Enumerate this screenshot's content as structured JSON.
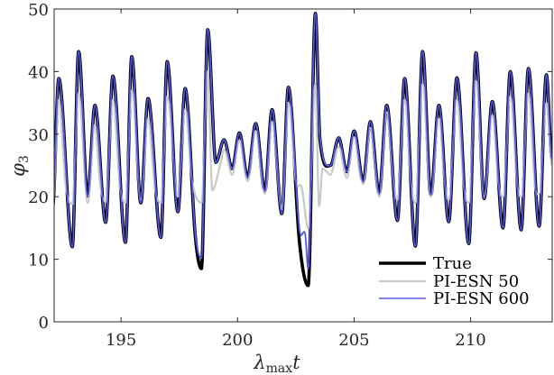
{
  "chart_data": {
    "type": "line",
    "title": "",
    "xlabel": "λ_max t",
    "xlabel_main": "λ",
    "xlabel_sub": "max",
    "xlabel_tail": "t",
    "ylabel": "φ_3",
    "ylabel_main": "φ",
    "ylabel_sub": "3",
    "xlim": [
      192.13,
      213.5
    ],
    "ylim": [
      0,
      50
    ],
    "xticks": [
      195,
      200,
      205,
      210
    ],
    "xtick_labels": [
      "195",
      "200",
      "205",
      "210"
    ],
    "yticks": [
      0,
      10,
      20,
      30,
      40,
      50
    ],
    "ytick_labels": [
      "0",
      "10",
      "20",
      "30",
      "40",
      "50"
    ],
    "grid": false,
    "legend_position": "lower right",
    "series": [
      {
        "name": "True",
        "color": "#000000",
        "width": 3.6,
        "points": [
          [
            192.06,
            18.2
          ],
          [
            192.33,
            38.9
          ],
          [
            192.91,
            12.0
          ],
          [
            193.18,
            43.2
          ],
          [
            193.57,
            20.1
          ],
          [
            193.88,
            34.6
          ],
          [
            194.34,
            15.9
          ],
          [
            194.65,
            39.3
          ],
          [
            195.19,
            12.7
          ],
          [
            195.46,
            42.4
          ],
          [
            195.85,
            19.0
          ],
          [
            196.16,
            35.7
          ],
          [
            196.71,
            13.5
          ],
          [
            196.98,
            41.6
          ],
          [
            197.44,
            17.6
          ],
          [
            197.75,
            37.3
          ],
          [
            198.18,
            14.0
          ],
          [
            198.45,
            8.5
          ],
          [
            198.72,
            46.7
          ],
          [
            199.07,
            25.5
          ],
          [
            199.42,
            29.1
          ],
          [
            199.77,
            24.5
          ],
          [
            200.08,
            30.2
          ],
          [
            200.43,
            23.1
          ],
          [
            200.78,
            31.7
          ],
          [
            201.17,
            20.9
          ],
          [
            201.48,
            33.9
          ],
          [
            201.9,
            17.3
          ],
          [
            202.18,
            37.5
          ],
          [
            202.65,
            13.0
          ],
          [
            203.03,
            5.8
          ],
          [
            203.34,
            49.3
          ],
          [
            203.53,
            29.4
          ],
          [
            203.99,
            25.0
          ],
          [
            204.34,
            29.4
          ],
          [
            204.69,
            24.0
          ],
          [
            205.0,
            30.5
          ],
          [
            205.39,
            22.4
          ],
          [
            205.7,
            32.0
          ],
          [
            206.08,
            20.5
          ],
          [
            206.4,
            34.6
          ],
          [
            206.86,
            16.2
          ],
          [
            207.17,
            38.9
          ],
          [
            207.63,
            12.1
          ],
          [
            207.94,
            43.2
          ],
          [
            208.29,
            20.3
          ],
          [
            208.64,
            34.6
          ],
          [
            209.06,
            16.0
          ],
          [
            209.41,
            39.0
          ],
          [
            209.92,
            12.5
          ],
          [
            210.23,
            43.0
          ],
          [
            210.58,
            19.7
          ],
          [
            210.93,
            35.2
          ],
          [
            211.39,
            15.0
          ],
          [
            211.7,
            40.0
          ],
          [
            212.17,
            14.7
          ],
          [
            212.48,
            40.5
          ],
          [
            212.94,
            15.3
          ],
          [
            213.25,
            39.5
          ],
          [
            213.49,
            26.0
          ]
        ]
      },
      {
        "name": "PI-ESN 50",
        "color": "#c8c8c8",
        "width": 2.2,
        "points": [
          [
            192.06,
            18.5
          ],
          [
            192.33,
            35.5
          ],
          [
            192.62,
            22.0
          ],
          [
            192.91,
            18.8
          ],
          [
            193.18,
            36.5
          ],
          [
            193.57,
            19.0
          ],
          [
            193.88,
            31.5
          ],
          [
            194.1,
            22.0
          ],
          [
            194.34,
            19.2
          ],
          [
            194.65,
            35.5
          ],
          [
            194.95,
            21.8
          ],
          [
            195.19,
            19.0
          ],
          [
            195.46,
            37.0
          ],
          [
            195.85,
            19.5
          ],
          [
            196.16,
            32.5
          ],
          [
            196.45,
            21.5
          ],
          [
            196.71,
            19.0
          ],
          [
            196.98,
            36.0
          ],
          [
            197.44,
            20.0
          ],
          [
            197.75,
            34.0
          ],
          [
            198.05,
            22.5
          ],
          [
            198.45,
            19.0
          ],
          [
            198.72,
            40.0
          ],
          [
            198.92,
            21.0
          ],
          [
            199.25,
            25.0
          ],
          [
            199.42,
            27.5
          ],
          [
            199.77,
            23.5
          ],
          [
            200.08,
            29.0
          ],
          [
            200.43,
            22.5
          ],
          [
            200.78,
            30.5
          ],
          [
            201.17,
            20.5
          ],
          [
            201.48,
            32.0
          ],
          [
            201.9,
            18.0
          ],
          [
            202.18,
            35.0
          ],
          [
            202.5,
            22.5
          ],
          [
            202.75,
            21.5
          ],
          [
            203.03,
            15.0
          ],
          [
            203.34,
            38.0
          ],
          [
            203.5,
            18.5
          ],
          [
            203.65,
            24.5
          ],
          [
            203.99,
            23.5
          ],
          [
            204.34,
            28.0
          ],
          [
            204.69,
            23.0
          ],
          [
            205.0,
            29.5
          ],
          [
            205.39,
            22.0
          ],
          [
            205.7,
            31.0
          ],
          [
            206.08,
            20.0
          ],
          [
            206.4,
            33.5
          ],
          [
            206.7,
            22.0
          ],
          [
            206.86,
            19.5
          ],
          [
            207.17,
            35.5
          ],
          [
            207.45,
            22.0
          ],
          [
            207.63,
            19.0
          ],
          [
            207.94,
            38.0
          ],
          [
            208.29,
            20.0
          ],
          [
            208.64,
            32.5
          ],
          [
            208.9,
            22.0
          ],
          [
            209.06,
            19.5
          ],
          [
            209.41,
            35.5
          ],
          [
            209.7,
            22.0
          ],
          [
            209.92,
            19.0
          ],
          [
            210.23,
            38.5
          ],
          [
            210.58,
            20.0
          ],
          [
            210.93,
            33.0
          ],
          [
            211.2,
            22.0
          ],
          [
            211.39,
            20.0
          ],
          [
            211.7,
            36.0
          ],
          [
            212.0,
            22.0
          ],
          [
            212.17,
            20.0
          ],
          [
            212.48,
            36.5
          ],
          [
            212.75,
            22.0
          ],
          [
            212.94,
            20.5
          ],
          [
            213.25,
            35.0
          ],
          [
            213.49,
            25.0
          ]
        ]
      },
      {
        "name": "PI-ESN 600",
        "color": "#5858e8",
        "width": 1.8,
        "points": [
          [
            192.06,
            18.2
          ],
          [
            192.33,
            38.9
          ],
          [
            192.91,
            12.0
          ],
          [
            193.18,
            43.2
          ],
          [
            193.57,
            20.1
          ],
          [
            193.88,
            34.6
          ],
          [
            194.34,
            15.9
          ],
          [
            194.65,
            39.3
          ],
          [
            195.19,
            12.7
          ],
          [
            195.46,
            42.4
          ],
          [
            195.85,
            19.0
          ],
          [
            196.16,
            35.7
          ],
          [
            196.71,
            13.5
          ],
          [
            196.98,
            41.6
          ],
          [
            197.44,
            17.6
          ],
          [
            197.75,
            37.3
          ],
          [
            198.18,
            14.5
          ],
          [
            198.45,
            10.2
          ],
          [
            198.72,
            46.7
          ],
          [
            199.07,
            25.5
          ],
          [
            199.42,
            29.1
          ],
          [
            199.77,
            24.5
          ],
          [
            200.08,
            30.2
          ],
          [
            200.43,
            23.1
          ],
          [
            200.78,
            31.7
          ],
          [
            201.17,
            20.9
          ],
          [
            201.48,
            33.9
          ],
          [
            201.9,
            17.3
          ],
          [
            202.18,
            37.5
          ],
          [
            202.65,
            15.0
          ],
          [
            202.9,
            14.0
          ],
          [
            203.03,
            8.5
          ],
          [
            203.34,
            49.3
          ],
          [
            203.53,
            29.8
          ],
          [
            203.99,
            25.0
          ],
          [
            204.34,
            29.4
          ],
          [
            204.69,
            24.0
          ],
          [
            205.0,
            30.5
          ],
          [
            205.39,
            22.4
          ],
          [
            205.7,
            32.0
          ],
          [
            206.08,
            20.5
          ],
          [
            206.4,
            34.6
          ],
          [
            206.86,
            16.2
          ],
          [
            207.17,
            38.9
          ],
          [
            207.63,
            12.1
          ],
          [
            207.94,
            43.2
          ],
          [
            208.29,
            20.3
          ],
          [
            208.64,
            34.6
          ],
          [
            209.06,
            16.0
          ],
          [
            209.41,
            39.0
          ],
          [
            209.92,
            12.5
          ],
          [
            210.23,
            43.0
          ],
          [
            210.58,
            19.7
          ],
          [
            210.93,
            35.2
          ],
          [
            211.39,
            15.0
          ],
          [
            211.7,
            40.0
          ],
          [
            212.17,
            14.7
          ],
          [
            212.48,
            40.5
          ],
          [
            212.94,
            15.3
          ],
          [
            213.25,
            39.5
          ],
          [
            213.49,
            26.0
          ]
        ]
      }
    ],
    "legend": [
      {
        "label": "True",
        "color": "#000000"
      },
      {
        "label": "PI-ESN 50",
        "color": "#c8c8c8"
      },
      {
        "label": "PI-ESN 600",
        "color": "#5858e8"
      }
    ]
  }
}
